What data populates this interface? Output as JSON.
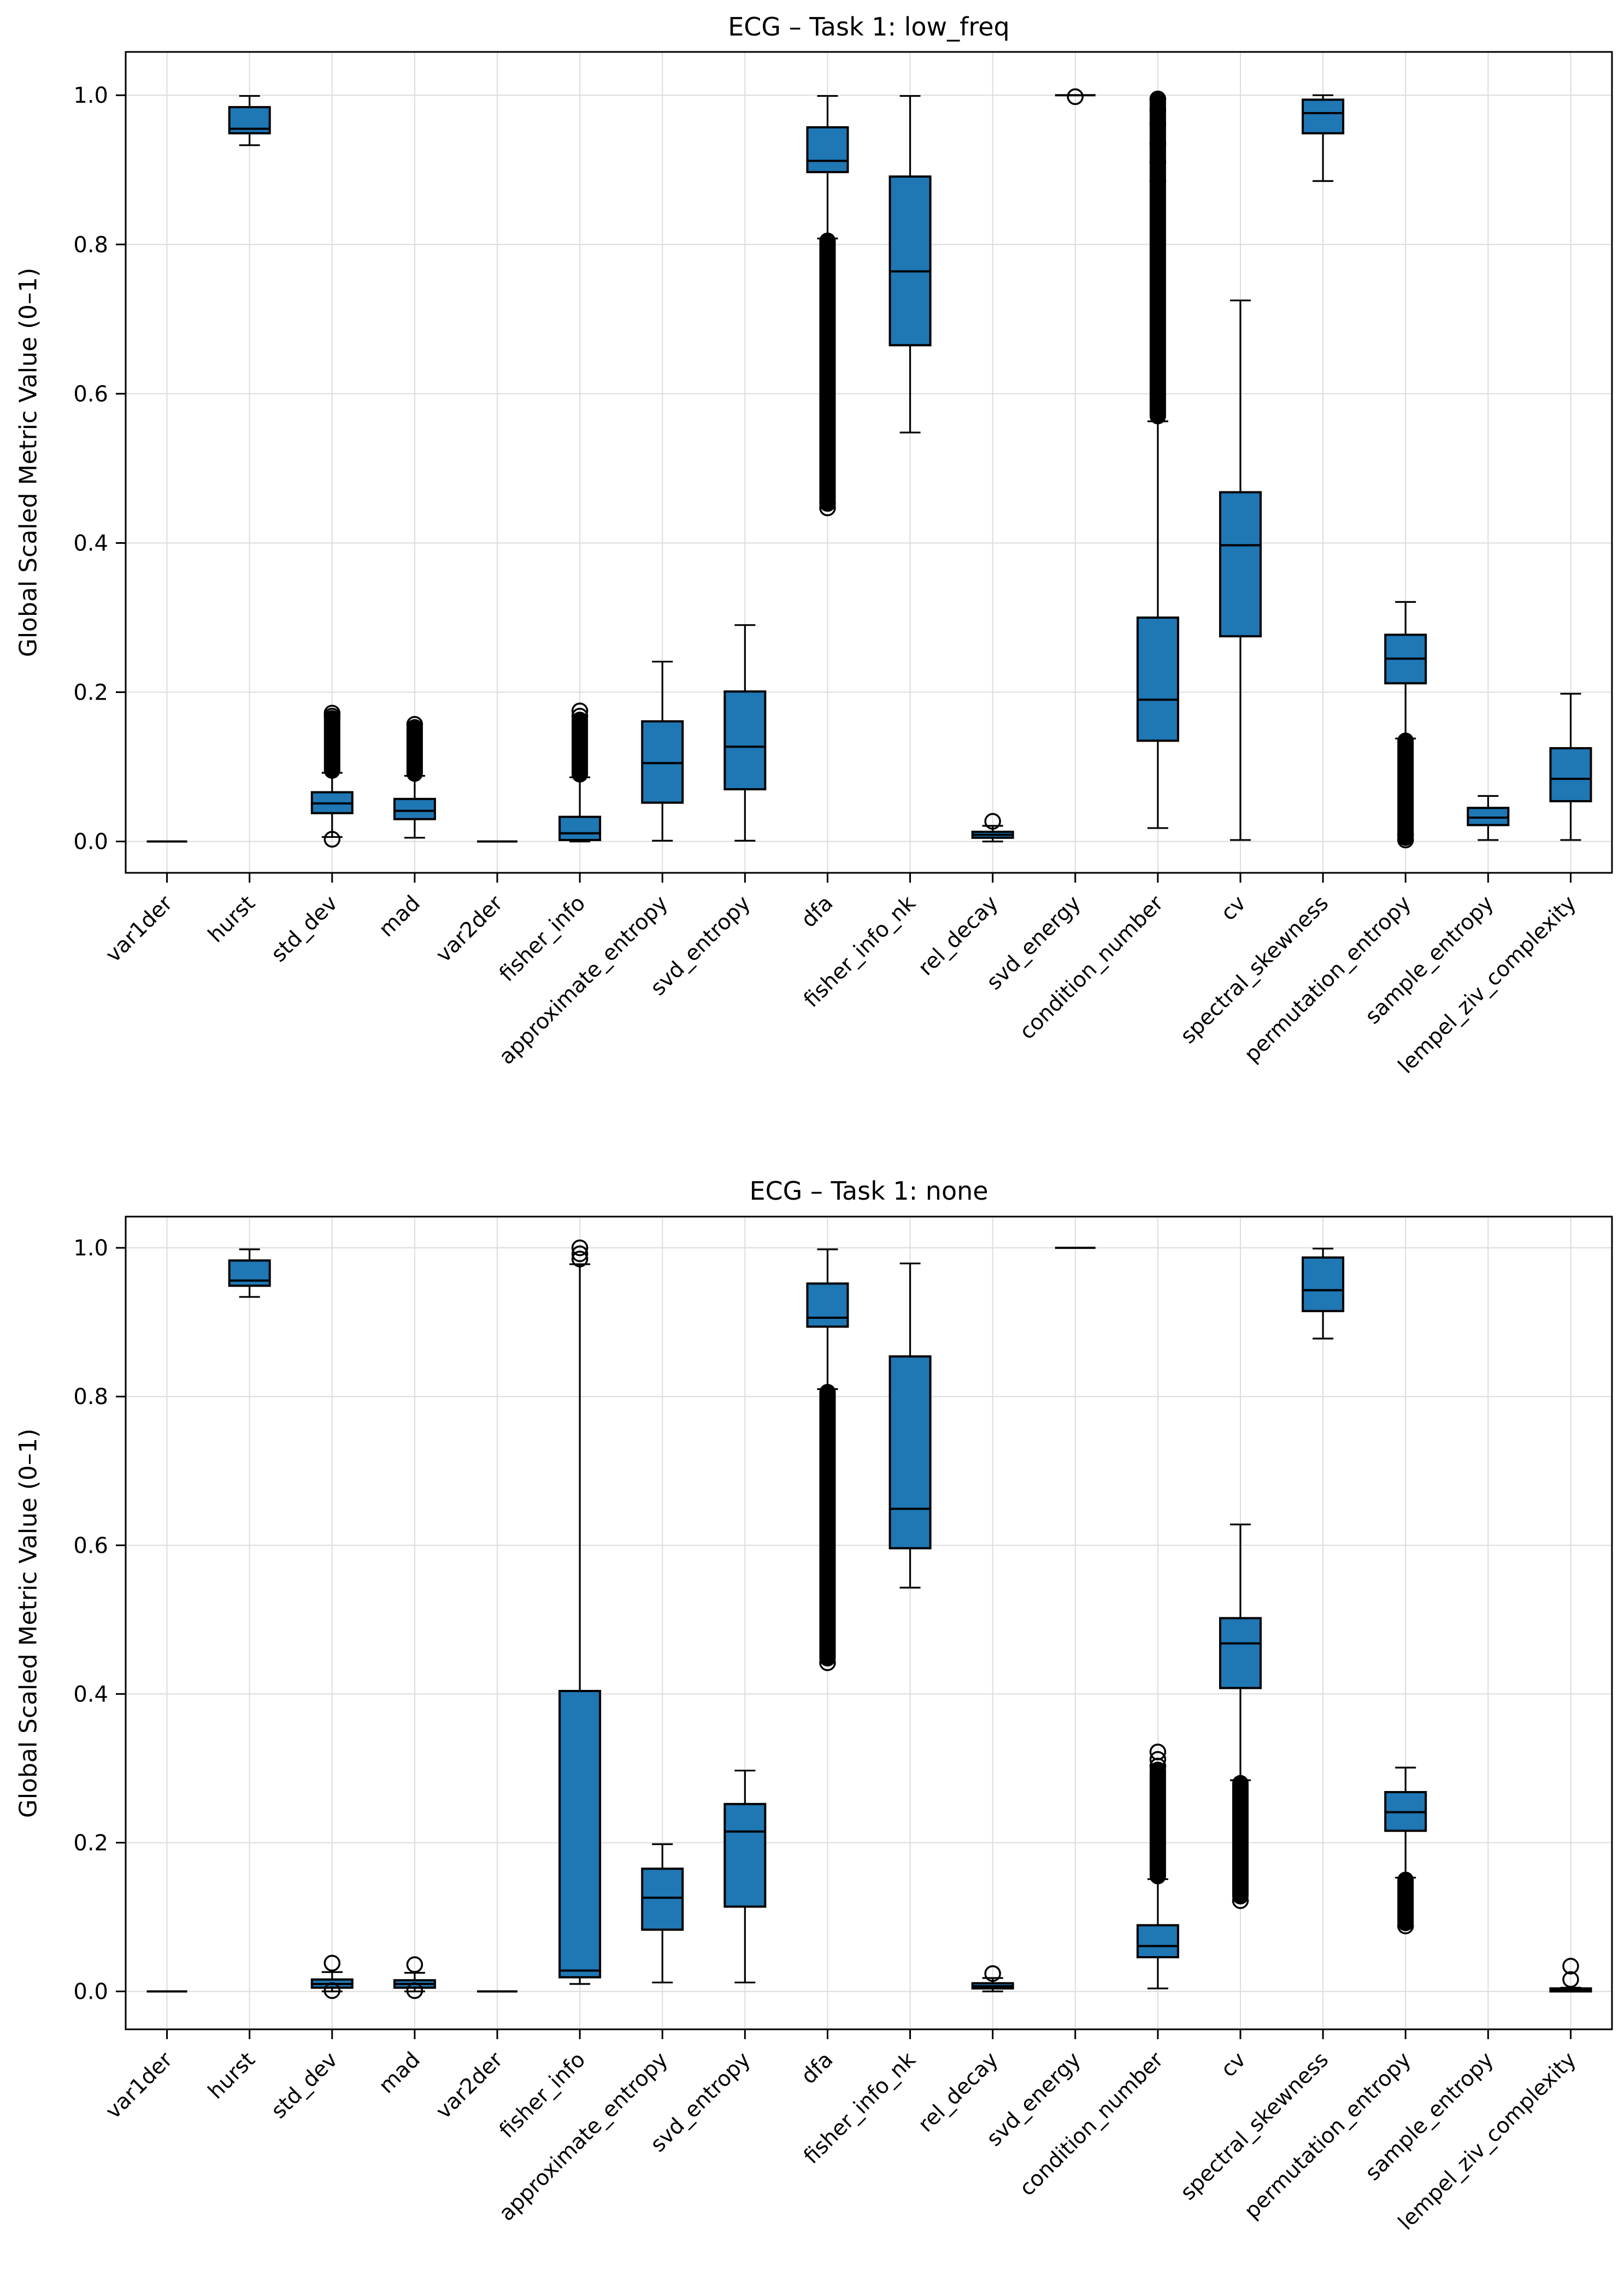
{
  "page": {
    "background": "#ffffff"
  },
  "styles": {
    "box_fill": "#1f77b4",
    "box_edge": "#000000",
    "median_color": "#000000",
    "whisker_color": "#000000",
    "grid_color": "#dcdcdc",
    "text_color": "#000000",
    "spine_color": "#000000"
  },
  "chart_data": [
    {
      "type": "boxplot",
      "title": "ECG – Task 1: low_freq",
      "ylabel": "Global Scaled Metric Value (0–1)",
      "xlabel": "",
      "ylim": [
        -0.042,
        1.058
      ],
      "yticks": [
        0.0,
        0.2,
        0.4,
        0.6,
        0.8,
        1.0
      ],
      "ytick_labels": [
        "0.0",
        "0.2",
        "0.4",
        "0.6",
        "0.8",
        "1.0"
      ],
      "grid": true,
      "legend": null,
      "categories": [
        "var1der",
        "hurst",
        "std_dev",
        "mad",
        "var2der",
        "fisher_info",
        "approximate_entropy",
        "svd_entropy",
        "dfa",
        "fisher_info_nk",
        "rel_decay",
        "svd_energy",
        "condition_number",
        "cv",
        "spectral_skewness",
        "permutation_entropy",
        "sample_entropy",
        "lempel_ziv_complexity"
      ],
      "boxes": [
        {
          "label": "var1der",
          "whislo": 0.0,
          "q1": 0.0,
          "med": 0.0,
          "q3": 0.0,
          "whishi": 0.0,
          "fliers": [],
          "fliers_dense": null
        },
        {
          "label": "hurst",
          "whislo": 0.933,
          "q1": 0.949,
          "med": 0.955,
          "q3": 0.984,
          "whishi": 0.999,
          "fliers": [],
          "fliers_dense": null
        },
        {
          "label": "std_dev",
          "whislo": 0.006,
          "q1": 0.038,
          "med": 0.051,
          "q3": 0.066,
          "whishi": 0.092,
          "fliers": [
            0.003,
            0.168,
            0.172
          ],
          "fliers_dense": [
            0.095,
            0.165
          ]
        },
        {
          "label": "mad",
          "whislo": 0.005,
          "q1": 0.03,
          "med": 0.041,
          "q3": 0.057,
          "whishi": 0.088,
          "fliers": [
            0.157
          ],
          "fliers_dense": [
            0.091,
            0.153
          ]
        },
        {
          "label": "var2der",
          "whislo": 0.0,
          "q1": 0.0,
          "med": 0.0,
          "q3": 0.0,
          "whishi": 0.0,
          "fliers": [],
          "fliers_dense": null
        },
        {
          "label": "fisher_info",
          "whislo": 0.0,
          "q1": 0.002,
          "med": 0.011,
          "q3": 0.033,
          "whishi": 0.086,
          "fliers": [
            0.168,
            0.175
          ],
          "fliers_dense": [
            0.09,
            0.163
          ]
        },
        {
          "label": "approximate_entropy",
          "whislo": 0.001,
          "q1": 0.052,
          "med": 0.105,
          "q3": 0.161,
          "whishi": 0.241,
          "fliers": [],
          "fliers_dense": null
        },
        {
          "label": "svd_entropy",
          "whislo": 0.001,
          "q1": 0.07,
          "med": 0.127,
          "q3": 0.201,
          "whishi": 0.29,
          "fliers": [],
          "fliers_dense": null
        },
        {
          "label": "dfa",
          "whislo": 0.808,
          "q1": 0.897,
          "med": 0.912,
          "q3": 0.957,
          "whishi": 0.999,
          "fliers": [
            0.447,
            0.453
          ],
          "fliers_dense": [
            0.455,
            0.805
          ]
        },
        {
          "label": "fisher_info_nk",
          "whislo": 0.548,
          "q1": 0.665,
          "med": 0.764,
          "q3": 0.891,
          "whishi": 0.999,
          "fliers": [],
          "fliers_dense": null
        },
        {
          "label": "rel_decay",
          "whislo": 0.0,
          "q1": 0.005,
          "med": 0.009,
          "q3": 0.013,
          "whishi": 0.021,
          "fliers": [
            0.027
          ],
          "fliers_dense": null
        },
        {
          "label": "svd_energy",
          "whislo": 1.0,
          "q1": 1.0,
          "med": 1.0,
          "q3": 1.0,
          "whishi": 1.0,
          "fliers": [
            0.998
          ],
          "fliers_dense": null
        },
        {
          "label": "condition_number",
          "whislo": 0.018,
          "q1": 0.135,
          "med": 0.19,
          "q3": 0.3,
          "whishi": 0.563,
          "fliers": [
            0.885,
            0.91,
            0.935,
            0.962,
            0.98,
            0.995
          ],
          "fliers_dense": [
            0.57,
            0.995
          ]
        },
        {
          "label": "cv",
          "whislo": 0.002,
          "q1": 0.275,
          "med": 0.397,
          "q3": 0.468,
          "whishi": 0.725,
          "fliers": [],
          "fliers_dense": null
        },
        {
          "label": "spectral_skewness",
          "whislo": 0.885,
          "q1": 0.949,
          "med": 0.976,
          "q3": 0.994,
          "whishi": 1.0,
          "fliers": [],
          "fliers_dense": null
        },
        {
          "label": "permutation_entropy",
          "whislo": 0.138,
          "q1": 0.212,
          "med": 0.245,
          "q3": 0.277,
          "whishi": 0.321,
          "fliers": [
            0.002,
            0.009
          ],
          "fliers_dense": [
            0.005,
            0.135
          ]
        },
        {
          "label": "sample_entropy",
          "whislo": 0.002,
          "q1": 0.022,
          "med": 0.032,
          "q3": 0.045,
          "whishi": 0.061,
          "fliers": [],
          "fliers_dense": null
        },
        {
          "label": "lempel_ziv_complexity",
          "whislo": 0.002,
          "q1": 0.054,
          "med": 0.084,
          "q3": 0.125,
          "whishi": 0.198,
          "fliers": [],
          "fliers_dense": null
        }
      ]
    },
    {
      "type": "boxplot",
      "title": "ECG – Task 1: none",
      "ylabel": "Global Scaled Metric Value (0–1)",
      "xlabel": "",
      "ylim": [
        -0.051,
        1.042
      ],
      "yticks": [
        0.0,
        0.2,
        0.4,
        0.6,
        0.8,
        1.0
      ],
      "ytick_labels": [
        "0.0",
        "0.2",
        "0.4",
        "0.6",
        "0.8",
        "1.0"
      ],
      "grid": true,
      "legend": null,
      "categories": [
        "var1der",
        "hurst",
        "std_dev",
        "mad",
        "var2der",
        "fisher_info",
        "approximate_entropy",
        "svd_entropy",
        "dfa",
        "fisher_info_nk",
        "rel_decay",
        "svd_energy",
        "condition_number",
        "cv",
        "spectral_skewness",
        "permutation_entropy",
        "sample_entropy",
        "lempel_ziv_complexity"
      ],
      "boxes": [
        {
          "label": "var1der",
          "whislo": 0.0,
          "q1": 0.0,
          "med": 0.0,
          "q3": 0.0,
          "whishi": 0.0,
          "fliers": [],
          "fliers_dense": null
        },
        {
          "label": "hurst",
          "whislo": 0.934,
          "q1": 0.949,
          "med": 0.956,
          "q3": 0.983,
          "whishi": 0.998,
          "fliers": [],
          "fliers_dense": null
        },
        {
          "label": "std_dev",
          "whislo": 0.0,
          "q1": 0.005,
          "med": 0.01,
          "q3": 0.016,
          "whishi": 0.026,
          "fliers": [
            0.038,
            0.001
          ],
          "fliers_dense": null
        },
        {
          "label": "mad",
          "whislo": 0.0,
          "q1": 0.005,
          "med": 0.01,
          "q3": 0.015,
          "whishi": 0.025,
          "fliers": [
            0.036,
            0.001
          ],
          "fliers_dense": null
        },
        {
          "label": "var2der",
          "whislo": 0.0,
          "q1": 0.0,
          "med": 0.0,
          "q3": 0.0,
          "whishi": 0.0,
          "fliers": [],
          "fliers_dense": null
        },
        {
          "label": "fisher_info",
          "whislo": 0.01,
          "q1": 0.019,
          "med": 0.028,
          "q3": 0.404,
          "whishi": 0.978,
          "fliers": [
            0.985,
            0.992,
            1.0
          ],
          "fliers_dense": null
        },
        {
          "label": "approximate_entropy",
          "whislo": 0.012,
          "q1": 0.083,
          "med": 0.126,
          "q3": 0.165,
          "whishi": 0.198,
          "fliers": [],
          "fliers_dense": null
        },
        {
          "label": "svd_entropy",
          "whislo": 0.012,
          "q1": 0.114,
          "med": 0.215,
          "q3": 0.252,
          "whishi": 0.297,
          "fliers": [],
          "fliers_dense": null
        },
        {
          "label": "dfa",
          "whislo": 0.81,
          "q1": 0.894,
          "med": 0.906,
          "q3": 0.952,
          "whishi": 0.998,
          "fliers": [
            0.442
          ],
          "fliers_dense": [
            0.448,
            0.806
          ]
        },
        {
          "label": "fisher_info_nk",
          "whislo": 0.543,
          "q1": 0.596,
          "med": 0.649,
          "q3": 0.854,
          "whishi": 0.979,
          "fliers": [],
          "fliers_dense": null
        },
        {
          "label": "rel_decay",
          "whislo": 0.0,
          "q1": 0.004,
          "med": 0.007,
          "q3": 0.011,
          "whishi": 0.018,
          "fliers": [
            0.024
          ],
          "fliers_dense": null
        },
        {
          "label": "svd_energy",
          "whislo": 1.0,
          "q1": 1.0,
          "med": 1.0,
          "q3": 1.0,
          "whishi": 1.0,
          "fliers": [],
          "fliers_dense": null
        },
        {
          "label": "condition_number",
          "whislo": 0.004,
          "q1": 0.046,
          "med": 0.061,
          "q3": 0.089,
          "whishi": 0.151,
          "fliers": [
            0.303,
            0.312,
            0.322
          ],
          "fliers_dense": [
            0.155,
            0.298
          ]
        },
        {
          "label": "cv",
          "whislo": 0.284,
          "q1": 0.408,
          "med": 0.468,
          "q3": 0.502,
          "whishi": 0.628,
          "fliers": [
            0.122
          ],
          "fliers_dense": [
            0.128,
            0.28
          ]
        },
        {
          "label": "spectral_skewness",
          "whislo": 0.878,
          "q1": 0.915,
          "med": 0.943,
          "q3": 0.987,
          "whishi": 0.999,
          "fliers": [],
          "fliers_dense": null
        },
        {
          "label": "permutation_entropy",
          "whislo": 0.153,
          "q1": 0.216,
          "med": 0.241,
          "q3": 0.268,
          "whishi": 0.301,
          "fliers": [
            0.088
          ],
          "fliers_dense": [
            0.092,
            0.15
          ]
        },
        {
          "label": "sample_entropy",
          "empty": true
        },
        {
          "label": "lempel_ziv_complexity",
          "whislo": 0.0,
          "q1": 0.0,
          "med": 0.002,
          "q3": 0.004,
          "whishi": 0.005,
          "fliers": [
            0.016,
            0.034
          ],
          "fliers_dense": null
        }
      ]
    }
  ]
}
